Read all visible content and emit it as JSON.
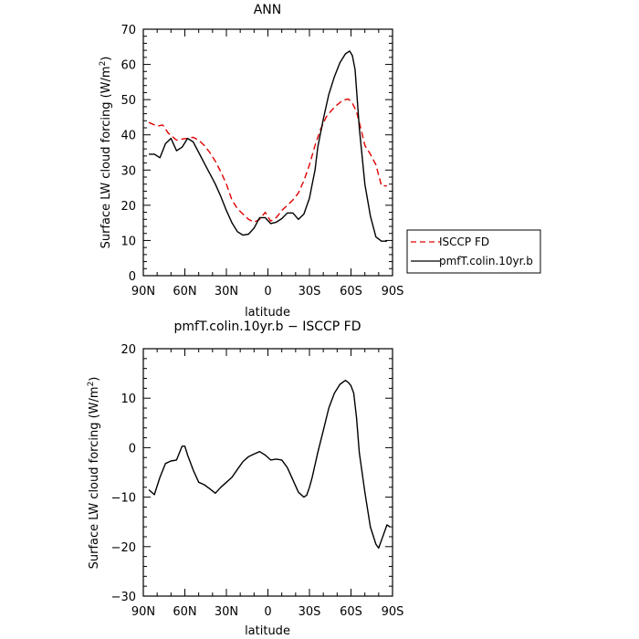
{
  "chart_data": [
    {
      "type": "line",
      "title": "ANN",
      "xlabel": "latitude",
      "ylabel": "Surface LW cloud forcing (W/m²)",
      "xlim": [
        90,
        -90
      ],
      "ylim": [
        0,
        70
      ],
      "x_ticks": [
        90,
        60,
        30,
        0,
        -30,
        -60,
        -90
      ],
      "x_tick_labels": [
        "90N",
        "60N",
        "30N",
        "0",
        "30S",
        "60S",
        "90S"
      ],
      "y_ticks": [
        0,
        10,
        20,
        30,
        40,
        50,
        60,
        70
      ],
      "y_tick_labels": [
        "0",
        "10",
        "20",
        "30",
        "40",
        "50",
        "60",
        "70"
      ],
      "grid": false,
      "legend_position": "right",
      "series": [
        {
          "name": "ISCCP FD",
          "color": "#e00000",
          "dash": true,
          "x": [
            86,
            80,
            76,
            72,
            66,
            62,
            58,
            54,
            50,
            46,
            42,
            38,
            34,
            30,
            26,
            22,
            18,
            14,
            10,
            6,
            2,
            -2,
            -6,
            -10,
            -14,
            -18,
            -22,
            -26,
            -30,
            -34,
            -38,
            -42,
            -46,
            -50,
            -54,
            -58,
            -61,
            -64,
            -67,
            -70,
            -74,
            -78,
            -82,
            -86
          ],
          "y": [
            43.5,
            42.5,
            42.8,
            40.5,
            38.5,
            38.8,
            39,
            39.3,
            38.5,
            37,
            35,
            32.5,
            29.5,
            26,
            21.5,
            19,
            17.5,
            16,
            15.2,
            16,
            18,
            15.5,
            16.5,
            18.5,
            20,
            21.5,
            23.5,
            27,
            31.5,
            37,
            41.5,
            45,
            47,
            48.5,
            49.8,
            50.2,
            49,
            46.5,
            42,
            37,
            34.5,
            31.5,
            25.5,
            25.5
          ]
        },
        {
          "name": "pmfT.colin.10yr.b",
          "color": "#000000",
          "dash": false,
          "x": [
            86,
            82,
            78,
            74,
            70,
            66,
            62,
            58,
            54,
            50,
            46,
            42,
            38,
            34,
            30,
            26,
            22,
            18,
            14,
            10,
            6,
            2,
            -2,
            -6,
            -10,
            -14,
            -18,
            -22,
            -26,
            -30,
            -32,
            -34,
            -36,
            -40,
            -44,
            -48,
            -52,
            -56,
            -59,
            -61,
            -63,
            -66,
            -70,
            -74,
            -78,
            -82,
            -86
          ],
          "y": [
            34.5,
            34.5,
            33.5,
            37.5,
            39,
            35.5,
            36.5,
            39,
            38,
            35,
            32,
            29,
            26,
            22.5,
            18.5,
            15,
            12.5,
            11.5,
            11.8,
            13.5,
            16.5,
            16.5,
            14.8,
            15.2,
            16.2,
            17.8,
            17.8,
            16,
            17.5,
            22,
            26,
            30,
            36.5,
            44.5,
            51.5,
            56.5,
            60.5,
            63,
            63.8,
            62.5,
            58.5,
            42,
            26,
            17,
            11,
            9.8,
            9.8
          ]
        }
      ]
    },
    {
      "type": "line",
      "title": "pmfT.colin.10yr.b − ISCCP FD",
      "xlabel": "latitude",
      "ylabel": "Surface LW cloud forcing (W/m²)",
      "xlim": [
        90,
        -90
      ],
      "ylim": [
        -30,
        20
      ],
      "x_ticks": [
        90,
        60,
        30,
        0,
        -30,
        -60,
        -90
      ],
      "x_tick_labels": [
        "90N",
        "60N",
        "30N",
        "0",
        "30S",
        "60S",
        "90S"
      ],
      "y_ticks": [
        -30,
        -20,
        -10,
        0,
        10,
        20
      ],
      "y_tick_labels": [
        "−30",
        "−20",
        "−10",
        "0",
        "10",
        "20"
      ],
      "grid": false,
      "series": [
        {
          "color": "#000000",
          "dash": false,
          "x": [
            86,
            82,
            78,
            74,
            70,
            66,
            62,
            60,
            58,
            56,
            54,
            50,
            46,
            42,
            38,
            34,
            30,
            26,
            22,
            18,
            14,
            10,
            6,
            2,
            -2,
            -6,
            -10,
            -14,
            -18,
            -22,
            -26,
            -28,
            -30,
            -32,
            -36,
            -40,
            -44,
            -48,
            -52,
            -56,
            -58,
            -60,
            -62,
            -64,
            -66,
            -70,
            -74,
            -78,
            -80,
            -82,
            -86,
            -88
          ],
          "y": [
            -8.5,
            -9.5,
            -6,
            -3.2,
            -2.7,
            -2.5,
            0.3,
            0.3,
            -1.5,
            -3,
            -4.5,
            -7,
            -7.5,
            -8.3,
            -9.2,
            -8,
            -7,
            -6,
            -4.4,
            -2.8,
            -1.8,
            -1.3,
            -0.8,
            -1.5,
            -2.5,
            -2.3,
            -2.5,
            -4,
            -6.5,
            -9,
            -10,
            -9.6,
            -8,
            -6,
            -1,
            3.5,
            8,
            11,
            12.8,
            13.6,
            13.2,
            12.5,
            11,
            6,
            -1,
            -9,
            -16,
            -19.5,
            -20.3,
            -18.7,
            -15.6,
            -16
          ]
        }
      ]
    }
  ]
}
